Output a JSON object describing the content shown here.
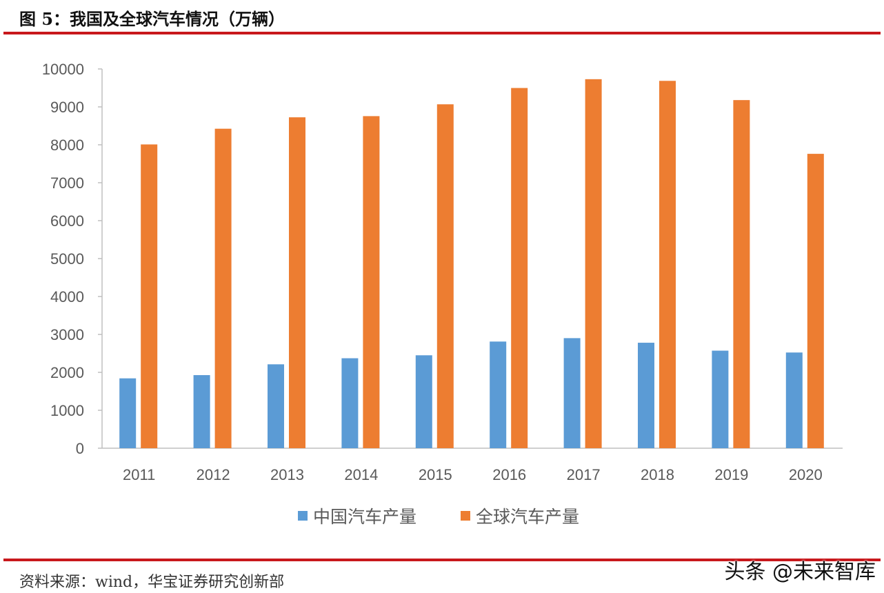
{
  "title": "图 5：我国及全球汽车情况（万辆）",
  "source": "资料来源：wind，华宝证券研究创新部",
  "watermark": "头条 @未来智库",
  "chart_data": {
    "type": "bar",
    "title": "",
    "xlabel": "",
    "ylabel": "",
    "categories": [
      "2011",
      "2012",
      "2013",
      "2014",
      "2015",
      "2016",
      "2017",
      "2018",
      "2019",
      "2020"
    ],
    "ylim": [
      0,
      10000
    ],
    "yticks": [
      0,
      1000,
      2000,
      3000,
      4000,
      5000,
      6000,
      7000,
      8000,
      9000,
      10000
    ],
    "grid": false,
    "legend": "bottom",
    "series": [
      {
        "name": "中国汽车产量",
        "color": "#5b9bd5",
        "values": [
          1842,
          1927,
          2212,
          2372,
          2450,
          2812,
          2902,
          2781,
          2572,
          2523
        ]
      },
      {
        "name": "全球汽车产量",
        "color": "#ed7d31",
        "values": [
          8010,
          8424,
          8725,
          8756,
          9068,
          9498,
          9730,
          9686,
          9179,
          7762
        ]
      }
    ]
  }
}
